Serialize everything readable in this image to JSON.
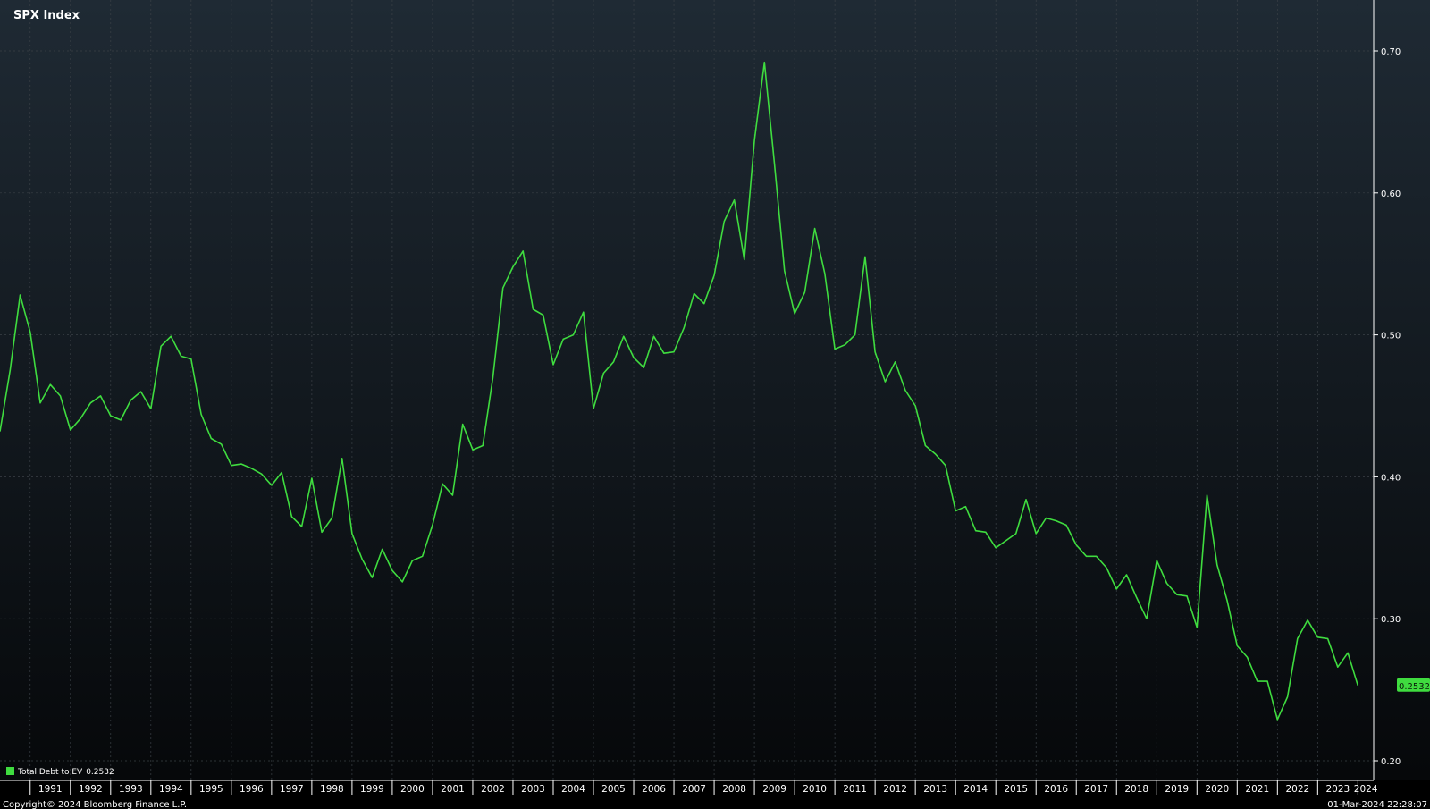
{
  "colors": {
    "background_top": "#1f2a34",
    "background_bottom": "#06080a",
    "series": "#3fdc3f",
    "grid": "#3a4046",
    "axis": "#ffffff",
    "label_box": "#3fdc3f"
  },
  "header": {
    "title": "SPX Index"
  },
  "legend": {
    "series_label": "Total Debt to EV",
    "series_value": "0.2532"
  },
  "footer": {
    "copyright": "Copyright© 2024 Bloomberg Finance L.P.",
    "timestamp": "01-Mar-2024 22:28:07"
  },
  "chart_data": {
    "type": "line",
    "title": "SPX Index",
    "xlabel": "",
    "ylabel": "",
    "x_start": 1990.25,
    "x_end": 2024.17,
    "x_step": 0.25,
    "xlim": [
      1990.25,
      2024.17
    ],
    "ylim": [
      0.195,
      0.72
    ],
    "y_ticks": [
      0.2,
      0.3,
      0.4,
      0.5,
      0.6,
      0.7
    ],
    "y_tick_labels": [
      "0.20",
      "0.30",
      "0.40",
      "0.50",
      "0.60",
      "0.70"
    ],
    "x_tick_years": [
      1991,
      1992,
      1993,
      1994,
      1995,
      1996,
      1997,
      1998,
      1999,
      2000,
      2001,
      2002,
      2003,
      2004,
      2005,
      2006,
      2007,
      2008,
      2009,
      2010,
      2011,
      2012,
      2013,
      2014,
      2015,
      2016,
      2017,
      2018,
      2019,
      2020,
      2021,
      2022,
      2023,
      2024
    ],
    "x_tick_labels": [
      "1991",
      "1992",
      "1993",
      "1994",
      "1995",
      "1996",
      "1997",
      "1998",
      "1999",
      "2000",
      "2001",
      "2002",
      "2003",
      "2004",
      "2005",
      "2006",
      "2007",
      "2008",
      "2009",
      "2010",
      "2011",
      "2012",
      "2013",
      "2014",
      "2015",
      "2016",
      "2017",
      "2018",
      "2019",
      "2020",
      "2021",
      "2022",
      "2023",
      "2024"
    ],
    "grid": true,
    "legend_position": "bottom-left",
    "last_value_label": "0.2532",
    "series": [
      {
        "name": "Total Debt to EV",
        "values": [
          0.432,
          0.475,
          0.528,
          0.502,
          0.452,
          0.465,
          0.457,
          0.433,
          0.441,
          0.452,
          0.457,
          0.443,
          0.44,
          0.454,
          0.46,
          0.448,
          0.492,
          0.499,
          0.485,
          0.483,
          0.444,
          0.427,
          0.423,
          0.408,
          0.409,
          0.406,
          0.402,
          0.394,
          0.403,
          0.372,
          0.365,
          0.399,
          0.361,
          0.371,
          0.413,
          0.36,
          0.342,
          0.329,
          0.349,
          0.334,
          0.326,
          0.341,
          0.344,
          0.366,
          0.395,
          0.387,
          0.437,
          0.419,
          0.422,
          0.47,
          0.533,
          0.548,
          0.559,
          0.518,
          0.514,
          0.479,
          0.497,
          0.5,
          0.516,
          0.448,
          0.473,
          0.481,
          0.499,
          0.484,
          0.477,
          0.499,
          0.487,
          0.488,
          0.505,
          0.529,
          0.522,
          0.542,
          0.58,
          0.595,
          0.553,
          0.637,
          0.692,
          0.62,
          0.545,
          0.515,
          0.53,
          0.575,
          0.543,
          0.49,
          0.493,
          0.5,
          0.555,
          0.488,
          0.467,
          0.481,
          0.461,
          0.45,
          0.422,
          0.416,
          0.408,
          0.376,
          0.379,
          0.362,
          0.361,
          0.35,
          0.355,
          0.36,
          0.384,
          0.36,
          0.371,
          0.369,
          0.366,
          0.352,
          0.344,
          0.344,
          0.336,
          0.321,
          0.331,
          0.315,
          0.3,
          0.341,
          0.325,
          0.317,
          0.316,
          0.294,
          0.387,
          0.338,
          0.313,
          0.281,
          0.273,
          0.256,
          0.256,
          0.229,
          0.245,
          0.286,
          0.299,
          0.287,
          0.286,
          0.266,
          0.276,
          0.253
        ]
      }
    ]
  }
}
